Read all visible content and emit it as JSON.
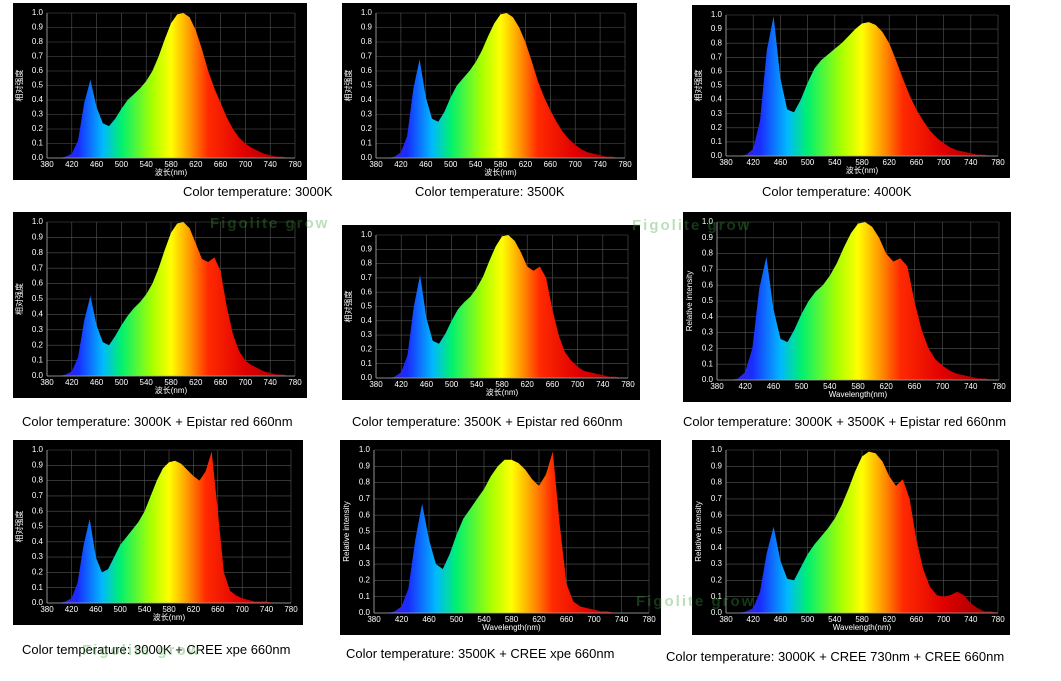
{
  "watermark": "Figolite grow",
  "chart_data": [
    {
      "type": "area",
      "title": "Color temperature: 3000K",
      "xlabel": "波长(nm)",
      "ylabel": "相对强度",
      "xlim": [
        380,
        780
      ],
      "ylim": [
        0,
        1
      ],
      "grid": true,
      "xticks": [
        380,
        420,
        460,
        500,
        540,
        580,
        620,
        660,
        700,
        740,
        780
      ],
      "yticks": [
        {
          "value": 0,
          "label": "0.0"
        },
        0.1,
        0.2,
        0.3,
        0.4,
        0.5,
        0.6,
        0.7,
        0.8,
        0.9,
        {
          "value": 1,
          "label": "1.0"
        }
      ],
      "x": [
        380,
        390,
        400,
        410,
        420,
        430,
        440,
        450,
        460,
        470,
        480,
        490,
        500,
        510,
        520,
        530,
        540,
        550,
        560,
        570,
        580,
        590,
        600,
        610,
        620,
        630,
        640,
        650,
        660,
        670,
        680,
        690,
        700,
        710,
        720,
        730,
        740,
        750,
        760,
        770,
        780
      ],
      "values": [
        0,
        0,
        0,
        0.01,
        0.03,
        0.12,
        0.38,
        0.54,
        0.35,
        0.24,
        0.22,
        0.27,
        0.34,
        0.4,
        0.44,
        0.48,
        0.53,
        0.6,
        0.7,
        0.82,
        0.93,
        0.99,
        1.0,
        0.97,
        0.88,
        0.75,
        0.6,
        0.48,
        0.38,
        0.28,
        0.2,
        0.14,
        0.1,
        0.07,
        0.05,
        0.03,
        0.02,
        0.01,
        0.01,
        0,
        0
      ]
    },
    {
      "type": "area",
      "title": "Color temperature: 3500K",
      "xlabel": "波长(nm)",
      "ylabel": "相对强度",
      "xlim": [
        380,
        780
      ],
      "ylim": [
        0,
        1
      ],
      "grid": true,
      "xticks": [
        380,
        420,
        460,
        500,
        540,
        580,
        620,
        660,
        700,
        740,
        780
      ],
      "yticks": [
        {
          "value": 0,
          "label": "0.0"
        },
        0.1,
        0.2,
        0.3,
        0.4,
        0.5,
        0.6,
        0.7,
        0.8,
        0.9,
        {
          "value": 1,
          "label": "1.0"
        }
      ],
      "x": [
        380,
        390,
        400,
        410,
        420,
        430,
        440,
        450,
        460,
        470,
        480,
        490,
        500,
        510,
        520,
        530,
        540,
        550,
        560,
        570,
        580,
        590,
        600,
        610,
        620,
        630,
        640,
        650,
        660,
        670,
        680,
        690,
        700,
        710,
        720,
        730,
        740,
        750,
        760,
        770,
        780
      ],
      "values": [
        0,
        0,
        0,
        0.01,
        0.04,
        0.15,
        0.48,
        0.68,
        0.42,
        0.27,
        0.25,
        0.32,
        0.42,
        0.5,
        0.55,
        0.6,
        0.66,
        0.74,
        0.84,
        0.93,
        0.99,
        1.0,
        0.97,
        0.9,
        0.8,
        0.67,
        0.53,
        0.42,
        0.33,
        0.25,
        0.18,
        0.13,
        0.09,
        0.06,
        0.04,
        0.03,
        0.02,
        0.01,
        0.01,
        0,
        0
      ]
    },
    {
      "type": "area",
      "title": "Color temperature: 4000K",
      "xlabel": "波长(nm)",
      "ylabel": "相对强度",
      "xlim": [
        380,
        780
      ],
      "ylim": [
        0,
        1
      ],
      "grid": true,
      "xticks": [
        380,
        420,
        460,
        500,
        540,
        580,
        620,
        660,
        700,
        740,
        780
      ],
      "yticks": [
        {
          "value": 0,
          "label": "0.0"
        },
        0.1,
        0.2,
        0.3,
        0.4,
        0.5,
        0.6,
        0.7,
        0.8,
        0.9,
        {
          "value": 1,
          "label": "1.0"
        }
      ],
      "x": [
        380,
        390,
        400,
        410,
        420,
        430,
        440,
        450,
        460,
        470,
        480,
        490,
        500,
        510,
        520,
        530,
        540,
        550,
        560,
        570,
        580,
        590,
        600,
        610,
        620,
        630,
        640,
        650,
        660,
        670,
        680,
        690,
        700,
        710,
        720,
        730,
        740,
        750,
        760,
        770,
        780
      ],
      "values": [
        0,
        0,
        0,
        0.01,
        0.05,
        0.25,
        0.75,
        0.99,
        0.55,
        0.33,
        0.31,
        0.4,
        0.52,
        0.62,
        0.68,
        0.72,
        0.76,
        0.8,
        0.85,
        0.9,
        0.94,
        0.95,
        0.93,
        0.88,
        0.8,
        0.68,
        0.55,
        0.43,
        0.33,
        0.25,
        0.18,
        0.13,
        0.09,
        0.06,
        0.04,
        0.03,
        0.02,
        0.01,
        0.01,
        0,
        0
      ]
    },
    {
      "type": "area",
      "title": "Color temperature: 3000K + Epistar red 660nm",
      "xlabel": "波长(nm)",
      "ylabel": "相对强度",
      "xlim": [
        380,
        780
      ],
      "ylim": [
        0,
        1
      ],
      "grid": true,
      "xticks": [
        380,
        420,
        460,
        500,
        540,
        580,
        620,
        660,
        700,
        740,
        780
      ],
      "yticks": [
        {
          "value": 0,
          "label": "0.0"
        },
        0.1,
        0.2,
        0.3,
        0.4,
        0.5,
        0.6,
        0.7,
        0.8,
        0.9,
        {
          "value": 1,
          "label": "1.0"
        }
      ],
      "x": [
        380,
        390,
        400,
        410,
        420,
        430,
        440,
        450,
        460,
        470,
        480,
        490,
        500,
        510,
        520,
        530,
        540,
        550,
        560,
        570,
        580,
        590,
        600,
        610,
        620,
        630,
        640,
        650,
        660,
        670,
        680,
        690,
        700,
        710,
        720,
        730,
        740,
        750,
        760,
        770,
        780
      ],
      "values": [
        0,
        0,
        0,
        0.01,
        0.03,
        0.12,
        0.36,
        0.52,
        0.33,
        0.22,
        0.2,
        0.26,
        0.33,
        0.39,
        0.44,
        0.48,
        0.53,
        0.6,
        0.7,
        0.82,
        0.93,
        0.99,
        1.0,
        0.96,
        0.86,
        0.76,
        0.74,
        0.77,
        0.68,
        0.45,
        0.27,
        0.16,
        0.1,
        0.07,
        0.05,
        0.03,
        0.02,
        0.01,
        0.01,
        0,
        0
      ]
    },
    {
      "type": "area",
      "title": "Color temperature: 3500K + Epistar red 660nm",
      "xlabel": "波长(nm)",
      "ylabel": "相对强度",
      "xlim": [
        380,
        780
      ],
      "ylim": [
        0,
        1
      ],
      "grid": true,
      "xticks": [
        380,
        420,
        460,
        500,
        540,
        580,
        620,
        660,
        700,
        740,
        780
      ],
      "yticks": [
        {
          "value": 0,
          "label": "0.0"
        },
        0.1,
        0.2,
        0.3,
        0.4,
        0.5,
        0.6,
        0.7,
        0.8,
        0.9,
        {
          "value": 1,
          "label": "1.0"
        }
      ],
      "x": [
        380,
        390,
        400,
        410,
        420,
        430,
        440,
        450,
        460,
        470,
        480,
        490,
        500,
        510,
        520,
        530,
        540,
        550,
        560,
        570,
        580,
        590,
        600,
        610,
        620,
        630,
        640,
        650,
        660,
        670,
        680,
        690,
        700,
        710,
        720,
        730,
        740,
        750,
        760,
        770,
        780
      ],
      "values": [
        0,
        0,
        0,
        0.01,
        0.04,
        0.16,
        0.5,
        0.72,
        0.42,
        0.26,
        0.24,
        0.31,
        0.4,
        0.48,
        0.53,
        0.57,
        0.63,
        0.71,
        0.82,
        0.92,
        0.99,
        1.0,
        0.96,
        0.88,
        0.78,
        0.75,
        0.78,
        0.7,
        0.48,
        0.3,
        0.18,
        0.12,
        0.08,
        0.05,
        0.04,
        0.03,
        0.02,
        0.01,
        0.01,
        0,
        0
      ]
    },
    {
      "type": "area",
      "title": "Color temperature: 3000K + 3500K + Epistar red 660nm",
      "xlabel": "Wavelength(nm)",
      "ylabel": "Relative intensity",
      "xlim": [
        380,
        780
      ],
      "ylim": [
        0,
        1
      ],
      "grid": true,
      "xticks": [
        380,
        420,
        460,
        500,
        540,
        580,
        620,
        660,
        700,
        740,
        780
      ],
      "yticks": [
        {
          "value": 0,
          "label": "0.0"
        },
        0.1,
        0.2,
        0.3,
        0.4,
        0.5,
        0.6,
        0.7,
        0.8,
        0.9,
        {
          "value": 1,
          "label": "1.0"
        }
      ],
      "x": [
        380,
        390,
        400,
        410,
        420,
        430,
        440,
        450,
        460,
        470,
        480,
        490,
        500,
        510,
        520,
        530,
        540,
        550,
        560,
        570,
        580,
        590,
        600,
        610,
        620,
        630,
        640,
        650,
        660,
        670,
        680,
        690,
        700,
        710,
        720,
        730,
        740,
        750,
        760,
        770,
        780
      ],
      "values": [
        0,
        0,
        0,
        0.01,
        0.05,
        0.2,
        0.58,
        0.78,
        0.45,
        0.26,
        0.24,
        0.32,
        0.42,
        0.5,
        0.56,
        0.6,
        0.66,
        0.74,
        0.84,
        0.93,
        0.99,
        1.0,
        0.97,
        0.9,
        0.8,
        0.75,
        0.77,
        0.72,
        0.5,
        0.32,
        0.2,
        0.13,
        0.09,
        0.06,
        0.04,
        0.03,
        0.02,
        0.01,
        0.01,
        0,
        0
      ]
    },
    {
      "type": "area",
      "title": "Color temperature: 3000K + CREE xpe 660nm",
      "xlabel": "波长(nm)",
      "ylabel": "相对强度",
      "xlim": [
        380,
        780
      ],
      "ylim": [
        0,
        1
      ],
      "grid": true,
      "xticks": [
        380,
        420,
        460,
        500,
        540,
        580,
        620,
        660,
        700,
        740,
        780
      ],
      "yticks": [
        {
          "value": 0,
          "label": "0.0"
        },
        0.1,
        0.2,
        0.3,
        0.4,
        0.5,
        0.6,
        0.7,
        0.8,
        0.9,
        {
          "value": 1,
          "label": "1.0"
        }
      ],
      "x": [
        380,
        390,
        400,
        410,
        420,
        430,
        440,
        450,
        460,
        470,
        480,
        490,
        500,
        510,
        520,
        530,
        540,
        550,
        560,
        570,
        580,
        590,
        600,
        610,
        620,
        630,
        640,
        650,
        660,
        670,
        680,
        690,
        700,
        710,
        720,
        730,
        740,
        750,
        760,
        770,
        780
      ],
      "values": [
        0,
        0,
        0,
        0.01,
        0.03,
        0.13,
        0.38,
        0.55,
        0.3,
        0.2,
        0.22,
        0.3,
        0.38,
        0.43,
        0.48,
        0.53,
        0.6,
        0.7,
        0.8,
        0.88,
        0.92,
        0.93,
        0.91,
        0.87,
        0.83,
        0.8,
        0.86,
        0.99,
        0.6,
        0.2,
        0.08,
        0.05,
        0.03,
        0.02,
        0.01,
        0.01,
        0.01,
        0,
        0,
        0,
        0
      ]
    },
    {
      "type": "area",
      "title": "Color temperature: 3500K + CREE xpe 660nm",
      "xlabel": "Wavelength(nm)",
      "ylabel": "Relative intensity",
      "xlim": [
        380,
        780
      ],
      "ylim": [
        0,
        1
      ],
      "grid": true,
      "xticks": [
        380,
        420,
        460,
        500,
        540,
        580,
        620,
        660,
        700,
        740,
        780
      ],
      "yticks": [
        {
          "value": 0,
          "label": "0.0"
        },
        0.1,
        0.2,
        0.3,
        0.4,
        0.5,
        0.6,
        0.7,
        0.8,
        0.9,
        {
          "value": 1,
          "label": "1.0"
        }
      ],
      "x": [
        380,
        390,
        400,
        410,
        420,
        430,
        440,
        450,
        460,
        470,
        480,
        490,
        500,
        510,
        520,
        530,
        540,
        550,
        560,
        570,
        580,
        590,
        600,
        610,
        620,
        630,
        640,
        650,
        660,
        670,
        680,
        690,
        700,
        710,
        720,
        730,
        740,
        750,
        760,
        770,
        780
      ],
      "values": [
        0,
        0,
        0,
        0.01,
        0.04,
        0.15,
        0.45,
        0.67,
        0.45,
        0.3,
        0.27,
        0.36,
        0.48,
        0.58,
        0.64,
        0.7,
        0.76,
        0.84,
        0.9,
        0.94,
        0.94,
        0.92,
        0.88,
        0.82,
        0.78,
        0.85,
        0.99,
        0.55,
        0.18,
        0.07,
        0.04,
        0.03,
        0.02,
        0.01,
        0.01,
        0,
        0,
        0,
        0,
        0,
        0
      ]
    },
    {
      "type": "area",
      "title": "Color temperature: 3000K + CREE 730nm + CREE 660nm",
      "xlabel": "Wavelength(nm)",
      "ylabel": "Relative intensity",
      "xlim": [
        380,
        780
      ],
      "ylim": [
        0,
        1
      ],
      "grid": true,
      "xticks": [
        380,
        420,
        460,
        500,
        540,
        580,
        620,
        660,
        700,
        740,
        780
      ],
      "yticks": [
        {
          "value": 0,
          "label": "0.0"
        },
        0.1,
        0.2,
        0.3,
        0.4,
        0.5,
        0.6,
        0.7,
        0.8,
        0.9,
        {
          "value": 1,
          "label": "1.0"
        }
      ],
      "x": [
        380,
        390,
        400,
        410,
        420,
        430,
        440,
        450,
        460,
        470,
        480,
        490,
        500,
        510,
        520,
        530,
        540,
        550,
        560,
        570,
        580,
        590,
        600,
        610,
        620,
        630,
        640,
        650,
        660,
        670,
        680,
        690,
        700,
        710,
        720,
        730,
        740,
        750,
        760,
        770,
        780
      ],
      "values": [
        0,
        0,
        0,
        0.01,
        0.03,
        0.13,
        0.37,
        0.53,
        0.32,
        0.21,
        0.2,
        0.28,
        0.36,
        0.42,
        0.47,
        0.52,
        0.58,
        0.66,
        0.76,
        0.87,
        0.96,
        0.99,
        0.98,
        0.93,
        0.84,
        0.78,
        0.82,
        0.7,
        0.45,
        0.27,
        0.16,
        0.11,
        0.1,
        0.11,
        0.13,
        0.11,
        0.06,
        0.03,
        0.01,
        0.01,
        0
      ]
    }
  ]
}
